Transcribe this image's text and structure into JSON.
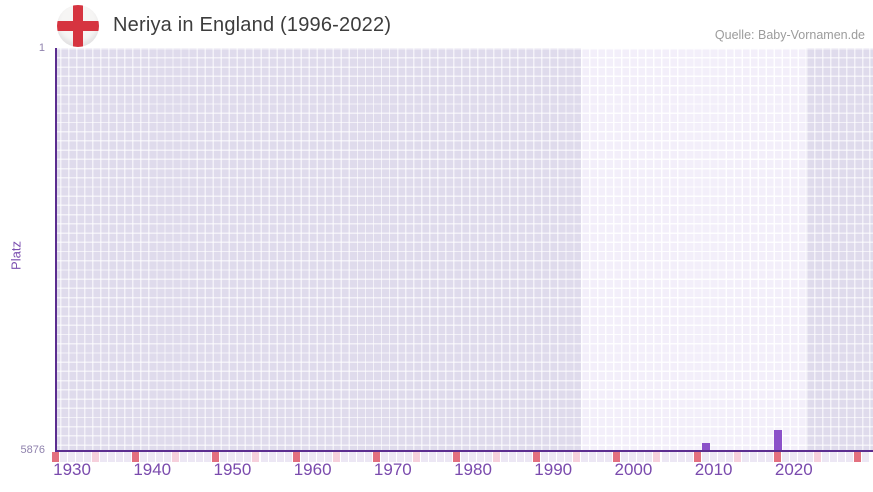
{
  "header": {
    "title": "Neriya in England (1996-2022)",
    "source": "Quelle: Baby-Vornamen.de"
  },
  "icons": {
    "flag": "england-flag"
  },
  "chart_data": {
    "type": "bar",
    "title": "Neriya in England (1996-2022)",
    "xlabel": "",
    "ylabel": "Platz",
    "y_axis": {
      "min": 1,
      "max": 5876,
      "inverted": true,
      "tick_labels": [
        "1",
        "5876"
      ]
    },
    "x_axis": {
      "start_year": 1928,
      "end_year": 2028,
      "tick_labels": [
        "1930",
        "1940",
        "1950",
        "1960",
        "1970",
        "1980",
        "1990",
        "2000",
        "2010",
        "2020"
      ]
    },
    "highlight_band_years": {
      "start": 1994,
      "end": 2021
    },
    "series": [
      {
        "name": "Platz",
        "points": [
          {
            "year": 2009,
            "platz": 5770
          },
          {
            "year": 2018,
            "platz": 5580
          }
        ]
      }
    ],
    "axis_markers": {
      "note": "small squares under axis: red every 10 years from 1928, pink every 10 years from 1933",
      "red_start_year": 1928,
      "pink_start_year": 1933,
      "interval": 10
    },
    "colors": {
      "bar": "#8b51c9",
      "axis": "#5b2d90",
      "grid_base": "#dfdbec",
      "highlight_band": "#f3effa",
      "marker_red": "#e3707f",
      "marker_pink": "#f6d0dc",
      "marker_plain": "#ece7f4",
      "label_purple": "#7a4aad",
      "title_text": "#3d3d3d",
      "source_text": "#9c9c9c"
    },
    "legend": "none",
    "grid": true
  }
}
